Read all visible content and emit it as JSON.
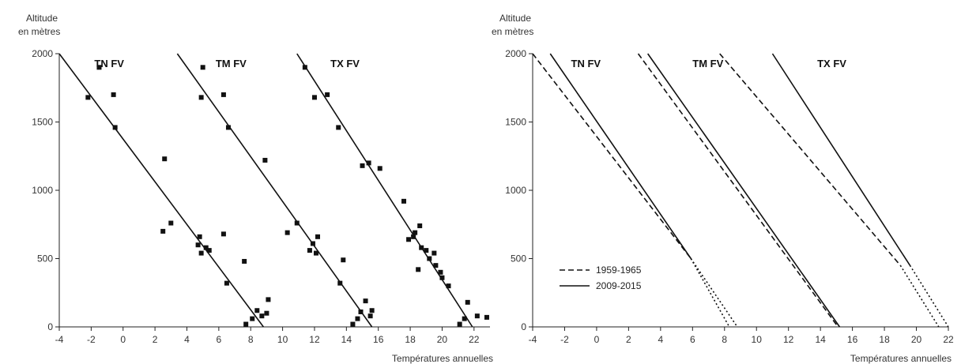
{
  "chart_data": [
    {
      "type": "scatter",
      "ylabel_line1": "Altitude",
      "ylabel_line2": "en mètres",
      "xlabel": "Températures annuelles",
      "xlim": [
        -4,
        23
      ],
      "ylim": [
        0,
        2000
      ],
      "xticks": [
        -4,
        -2,
        0,
        2,
        4,
        6,
        8,
        10,
        12,
        14,
        16,
        18,
        20,
        22
      ],
      "yticks": [
        0,
        500,
        1000,
        1500,
        2000
      ],
      "grid": false,
      "panel_labels": [
        {
          "text": "TN FV",
          "x": -1.8,
          "y": 1880
        },
        {
          "text": "TM FV",
          "x": 5.8,
          "y": 1880
        },
        {
          "text": "TX FV",
          "x": 13.0,
          "y": 1880
        }
      ],
      "series": [
        {
          "group": "TN FV",
          "line": {
            "x": [
              -4.0,
              8.8
            ],
            "y": [
              2000,
              0
            ]
          },
          "points": [
            [
              -2.2,
              1680
            ],
            [
              -1.5,
              1900
            ],
            [
              -0.6,
              1700
            ],
            [
              -0.5,
              1460
            ],
            [
              2.6,
              1230
            ],
            [
              2.5,
              700
            ],
            [
              3.0,
              760
            ],
            [
              4.8,
              660
            ],
            [
              4.7,
              600
            ],
            [
              4.9,
              540
            ],
            [
              5.2,
              580
            ],
            [
              5.4,
              560
            ],
            [
              6.3,
              680
            ],
            [
              6.5,
              320
            ],
            [
              7.6,
              480
            ],
            [
              7.7,
              20
            ],
            [
              8.1,
              60
            ],
            [
              8.4,
              120
            ],
            [
              8.7,
              80
            ],
            [
              9.1,
              200
            ],
            [
              9.0,
              100
            ]
          ]
        },
        {
          "group": "TM FV",
          "line": {
            "x": [
              3.4,
              15.6
            ],
            "y": [
              2000,
              0
            ]
          },
          "points": [
            [
              5.0,
              1900
            ],
            [
              4.9,
              1680
            ],
            [
              6.3,
              1700
            ],
            [
              6.6,
              1460
            ],
            [
              8.9,
              1220
            ],
            [
              10.3,
              690
            ],
            [
              10.9,
              760
            ],
            [
              11.7,
              560
            ],
            [
              11.9,
              610
            ],
            [
              12.1,
              540
            ],
            [
              12.2,
              660
            ],
            [
              13.6,
              320
            ],
            [
              13.8,
              490
            ],
            [
              14.4,
              20
            ],
            [
              14.7,
              60
            ],
            [
              14.9,
              110
            ],
            [
              15.2,
              190
            ],
            [
              15.5,
              80
            ],
            [
              15.6,
              120
            ]
          ]
        },
        {
          "group": "TX FV",
          "line": {
            "x": [
              10.9,
              21.9
            ],
            "y": [
              2000,
              0
            ]
          },
          "points": [
            [
              11.4,
              1900
            ],
            [
              12.0,
              1680
            ],
            [
              12.8,
              1700
            ],
            [
              13.5,
              1460
            ],
            [
              15.0,
              1180
            ],
            [
              15.4,
              1200
            ],
            [
              16.1,
              1160
            ],
            [
              17.6,
              920
            ],
            [
              17.9,
              640
            ],
            [
              18.2,
              660
            ],
            [
              18.3,
              690
            ],
            [
              18.6,
              740
            ],
            [
              18.5,
              420
            ],
            [
              18.7,
              580
            ],
            [
              19.0,
              560
            ],
            [
              19.2,
              500
            ],
            [
              19.5,
              540
            ],
            [
              19.6,
              450
            ],
            [
              19.9,
              400
            ],
            [
              20.0,
              360
            ],
            [
              20.4,
              300
            ],
            [
              21.1,
              20
            ],
            [
              21.4,
              60
            ],
            [
              21.6,
              180
            ],
            [
              22.2,
              80
            ],
            [
              22.8,
              70
            ]
          ]
        }
      ]
    },
    {
      "type": "line",
      "ylabel_line1": "Altitude",
      "ylabel_line2": "en mètres",
      "xlabel": "Températures annuelles",
      "xlim": [
        -4,
        22
      ],
      "ylim": [
        0,
        2000
      ],
      "xticks": [
        -4,
        -2,
        0,
        2,
        4,
        6,
        8,
        10,
        12,
        14,
        16,
        18,
        20,
        22
      ],
      "yticks": [
        0,
        500,
        1000,
        1500,
        2000
      ],
      "grid": false,
      "panel_labels": [
        {
          "text": "TN FV",
          "x": -1.6,
          "y": 1880
        },
        {
          "text": "TM FV",
          "x": 6.0,
          "y": 1880
        },
        {
          "text": "TX FV",
          "x": 13.8,
          "y": 1880
        }
      ],
      "legend": [
        {
          "label": "1959-1965",
          "style": "dashed"
        },
        {
          "label": "2009-2015",
          "style": "solid"
        }
      ],
      "legend_position": "lower-left",
      "series": [
        {
          "group": "TN FV",
          "period": "1959-1965",
          "style": "dashed",
          "x": [
            -4.0,
            5.9
          ],
          "y": [
            2000,
            500
          ],
          "ext_x": [
            5.9,
            8.3
          ],
          "ext_y": [
            500,
            0
          ]
        },
        {
          "group": "TN FV",
          "period": "2009-2015",
          "style": "solid",
          "x": [
            -2.9,
            5.9
          ],
          "y": [
            2000,
            500
          ],
          "ext_x": [
            5.9,
            8.8
          ],
          "ext_y": [
            500,
            0
          ]
        },
        {
          "group": "TM FV",
          "period": "1959-1965",
          "style": "dashed",
          "x": [
            2.6,
            15.1
          ],
          "y": [
            2000,
            0
          ]
        },
        {
          "group": "TM FV",
          "period": "2009-2015",
          "style": "solid",
          "x": [
            3.2,
            15.2
          ],
          "y": [
            2000,
            0
          ]
        },
        {
          "group": "TX FV",
          "period": "1959-1965",
          "style": "dashed",
          "x": [
            7.7,
            19.0
          ],
          "y": [
            2000,
            450
          ],
          "ext_x": [
            19.0,
            21.4
          ],
          "ext_y": [
            450,
            0
          ]
        },
        {
          "group": "TX FV",
          "period": "2009-2015",
          "style": "solid",
          "x": [
            11.0,
            19.6
          ],
          "y": [
            2000,
            450
          ],
          "ext_x": [
            19.6,
            22.0
          ],
          "ext_y": [
            450,
            0
          ]
        }
      ]
    }
  ]
}
